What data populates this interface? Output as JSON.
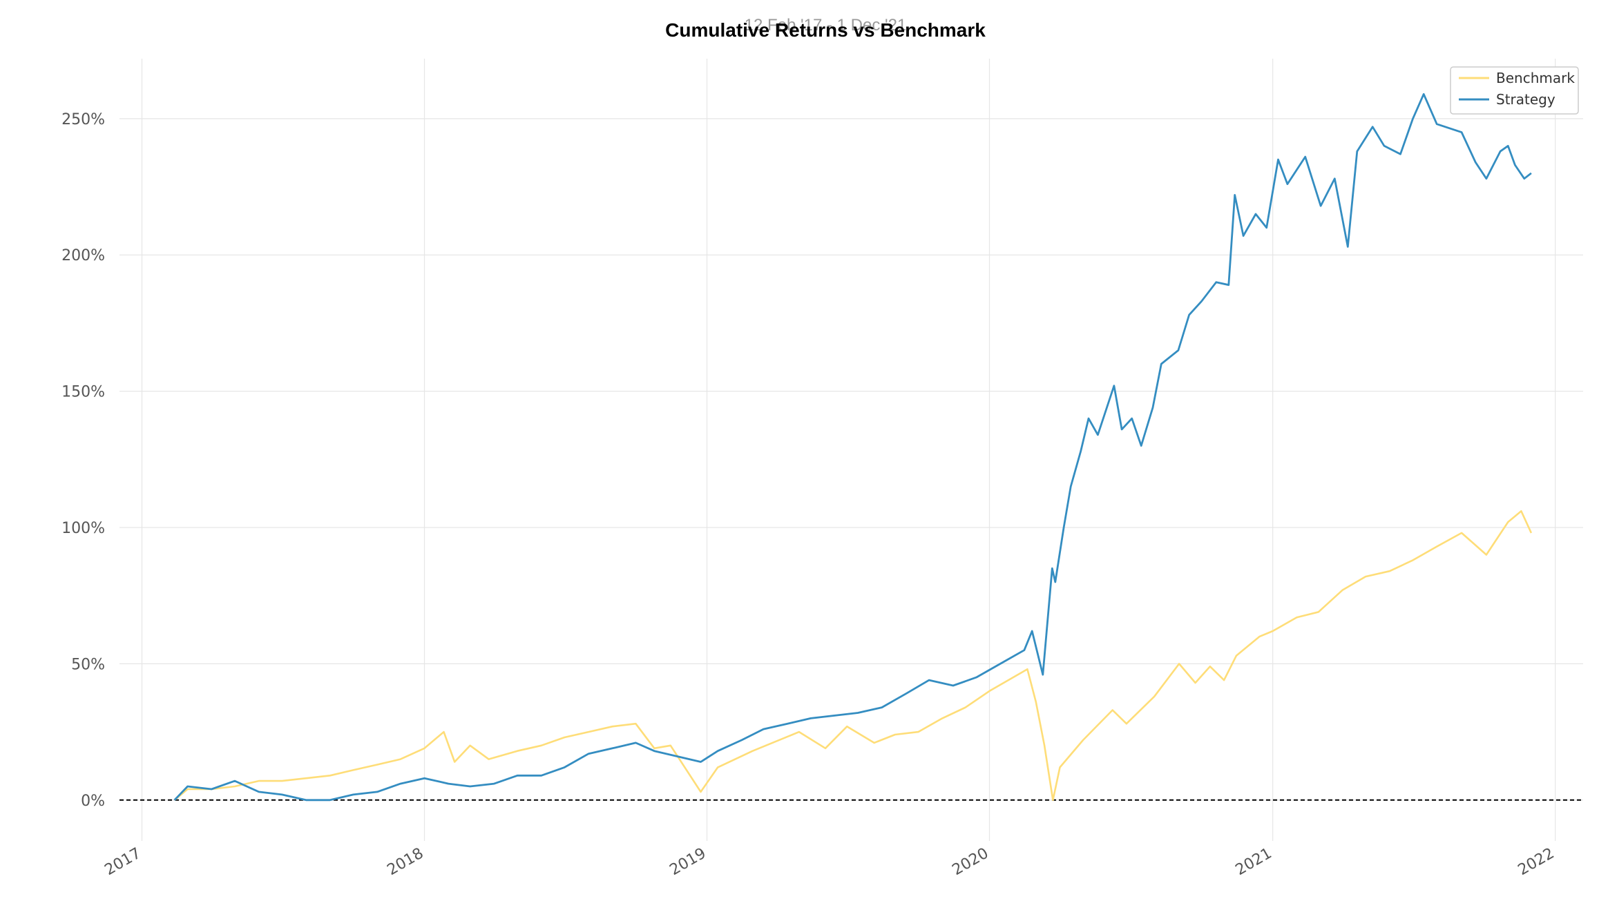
{
  "chart_data": {
    "type": "line",
    "title": "Cumulative Returns vs Benchmark",
    "subtitle": "12 Feb '17 - 1 Dec '21",
    "xlabel": "",
    "ylabel": "",
    "y_unit": "%",
    "ylim": [
      -15,
      272
    ],
    "xlim": [
      "2016-12-03",
      "2022-02-06"
    ],
    "y_ticks": [
      0,
      50,
      100,
      150,
      200,
      250
    ],
    "y_tick_labels": [
      "0%",
      "50%",
      "100%",
      "150%",
      "200%",
      "250%"
    ],
    "x_ticks": [
      "2017-01-01",
      "2018-01-01",
      "2019-01-01",
      "2020-01-01",
      "2021-01-01",
      "2022-01-01"
    ],
    "x_tick_labels": [
      "2017",
      "2018",
      "2019",
      "2020",
      "2021",
      "2022"
    ],
    "grid": true,
    "legend_position": "top-right",
    "zero_line": true,
    "colors": {
      "Benchmark": "#fedd78",
      "Strategy": "#348dc1",
      "zero_line": "#000000"
    },
    "series": [
      {
        "name": "Benchmark",
        "points": [
          [
            "2017-02-12",
            0
          ],
          [
            "2017-03-01",
            4
          ],
          [
            "2017-04-01",
            4
          ],
          [
            "2017-05-01",
            5
          ],
          [
            "2017-06-01",
            7
          ],
          [
            "2017-07-01",
            7
          ],
          [
            "2017-08-01",
            8
          ],
          [
            "2017-09-01",
            9
          ],
          [
            "2017-10-01",
            11
          ],
          [
            "2017-11-01",
            13
          ],
          [
            "2017-12-01",
            15
          ],
          [
            "2018-01-01",
            19
          ],
          [
            "2018-01-26",
            25
          ],
          [
            "2018-02-09",
            14
          ],
          [
            "2018-03-01",
            20
          ],
          [
            "2018-03-25",
            15
          ],
          [
            "2018-05-01",
            18
          ],
          [
            "2018-06-01",
            20
          ],
          [
            "2018-07-01",
            23
          ],
          [
            "2018-08-01",
            25
          ],
          [
            "2018-09-01",
            27
          ],
          [
            "2018-10-01",
            28
          ],
          [
            "2018-10-25",
            19
          ],
          [
            "2018-11-15",
            20
          ],
          [
            "2018-12-24",
            3
          ],
          [
            "2019-01-15",
            12
          ],
          [
            "2019-03-01",
            18
          ],
          [
            "2019-04-30",
            25
          ],
          [
            "2019-06-03",
            19
          ],
          [
            "2019-07-01",
            27
          ],
          [
            "2019-08-05",
            21
          ],
          [
            "2019-09-01",
            24
          ],
          [
            "2019-10-01",
            25
          ],
          [
            "2019-11-01",
            30
          ],
          [
            "2019-12-01",
            34
          ],
          [
            "2020-01-01",
            40
          ],
          [
            "2020-02-19",
            48
          ],
          [
            "2020-03-01",
            36
          ],
          [
            "2020-03-12",
            20
          ],
          [
            "2020-03-23",
            0
          ],
          [
            "2020-04-01",
            12
          ],
          [
            "2020-05-01",
            22
          ],
          [
            "2020-06-08",
            33
          ],
          [
            "2020-06-26",
            28
          ],
          [
            "2020-08-01",
            38
          ],
          [
            "2020-09-02",
            50
          ],
          [
            "2020-09-23",
            43
          ],
          [
            "2020-10-12",
            49
          ],
          [
            "2020-10-30",
            44
          ],
          [
            "2020-11-15",
            53
          ],
          [
            "2020-12-15",
            60
          ],
          [
            "2021-01-01",
            62
          ],
          [
            "2021-02-01",
            67
          ],
          [
            "2021-03-01",
            69
          ],
          [
            "2021-04-01",
            77
          ],
          [
            "2021-05-01",
            82
          ],
          [
            "2021-06-01",
            84
          ],
          [
            "2021-07-01",
            88
          ],
          [
            "2021-08-01",
            93
          ],
          [
            "2021-09-02",
            98
          ],
          [
            "2021-10-04",
            90
          ],
          [
            "2021-11-01",
            102
          ],
          [
            "2021-11-18",
            106
          ],
          [
            "2021-12-01",
            98
          ]
        ]
      },
      {
        "name": "Strategy",
        "points": [
          [
            "2017-02-12",
            0
          ],
          [
            "2017-03-01",
            5
          ],
          [
            "2017-04-01",
            4
          ],
          [
            "2017-05-01",
            7
          ],
          [
            "2017-06-01",
            3
          ],
          [
            "2017-07-01",
            2
          ],
          [
            "2017-08-01",
            0
          ],
          [
            "2017-09-01",
            0
          ],
          [
            "2017-10-01",
            2
          ],
          [
            "2017-11-01",
            3
          ],
          [
            "2017-12-01",
            6
          ],
          [
            "2018-01-01",
            8
          ],
          [
            "2018-02-01",
            6
          ],
          [
            "2018-03-01",
            5
          ],
          [
            "2018-04-01",
            6
          ],
          [
            "2018-05-01",
            9
          ],
          [
            "2018-06-01",
            9
          ],
          [
            "2018-07-01",
            12
          ],
          [
            "2018-08-01",
            17
          ],
          [
            "2018-09-01",
            19
          ],
          [
            "2018-10-01",
            21
          ],
          [
            "2018-10-25",
            18
          ],
          [
            "2018-12-24",
            14
          ],
          [
            "2019-01-15",
            18
          ],
          [
            "2019-02-15",
            22
          ],
          [
            "2019-03-15",
            26
          ],
          [
            "2019-04-15",
            28
          ],
          [
            "2019-05-15",
            30
          ],
          [
            "2019-06-15",
            31
          ],
          [
            "2019-07-15",
            32
          ],
          [
            "2019-08-15",
            34
          ],
          [
            "2019-09-15",
            39
          ],
          [
            "2019-10-15",
            44
          ],
          [
            "2019-11-15",
            42
          ],
          [
            "2019-12-15",
            45
          ],
          [
            "2020-01-15",
            50
          ],
          [
            "2020-02-15",
            55
          ],
          [
            "2020-02-25",
            62
          ],
          [
            "2020-03-10",
            46
          ],
          [
            "2020-03-22",
            85
          ],
          [
            "2020-03-26",
            80
          ],
          [
            "2020-04-06",
            100
          ],
          [
            "2020-04-15",
            115
          ],
          [
            "2020-04-28",
            128
          ],
          [
            "2020-05-08",
            140
          ],
          [
            "2020-05-20",
            134
          ],
          [
            "2020-06-10",
            152
          ],
          [
            "2020-06-20",
            136
          ],
          [
            "2020-07-03",
            140
          ],
          [
            "2020-07-15",
            130
          ],
          [
            "2020-07-30",
            144
          ],
          [
            "2020-08-10",
            160
          ],
          [
            "2020-09-01",
            165
          ],
          [
            "2020-09-15",
            178
          ],
          [
            "2020-10-01",
            183
          ],
          [
            "2020-10-20",
            190
          ],
          [
            "2020-11-05",
            189
          ],
          [
            "2020-11-13",
            222
          ],
          [
            "2020-11-24",
            207
          ],
          [
            "2020-12-10",
            215
          ],
          [
            "2020-12-24",
            210
          ],
          [
            "2021-01-08",
            235
          ],
          [
            "2021-01-20",
            226
          ],
          [
            "2021-02-12",
            236
          ],
          [
            "2021-03-04",
            218
          ],
          [
            "2021-03-22",
            228
          ],
          [
            "2021-04-08",
            203
          ],
          [
            "2021-04-20",
            238
          ],
          [
            "2021-05-10",
            247
          ],
          [
            "2021-05-25",
            240
          ],
          [
            "2021-06-15",
            237
          ],
          [
            "2021-07-01",
            250
          ],
          [
            "2021-07-15",
            259
          ],
          [
            "2021-08-01",
            248
          ],
          [
            "2021-09-02",
            245
          ],
          [
            "2021-09-20",
            234
          ],
          [
            "2021-10-04",
            228
          ],
          [
            "2021-10-22",
            238
          ],
          [
            "2021-11-01",
            240
          ],
          [
            "2021-11-10",
            233
          ],
          [
            "2021-11-22",
            228
          ],
          [
            "2021-12-01",
            230
          ]
        ]
      }
    ]
  }
}
